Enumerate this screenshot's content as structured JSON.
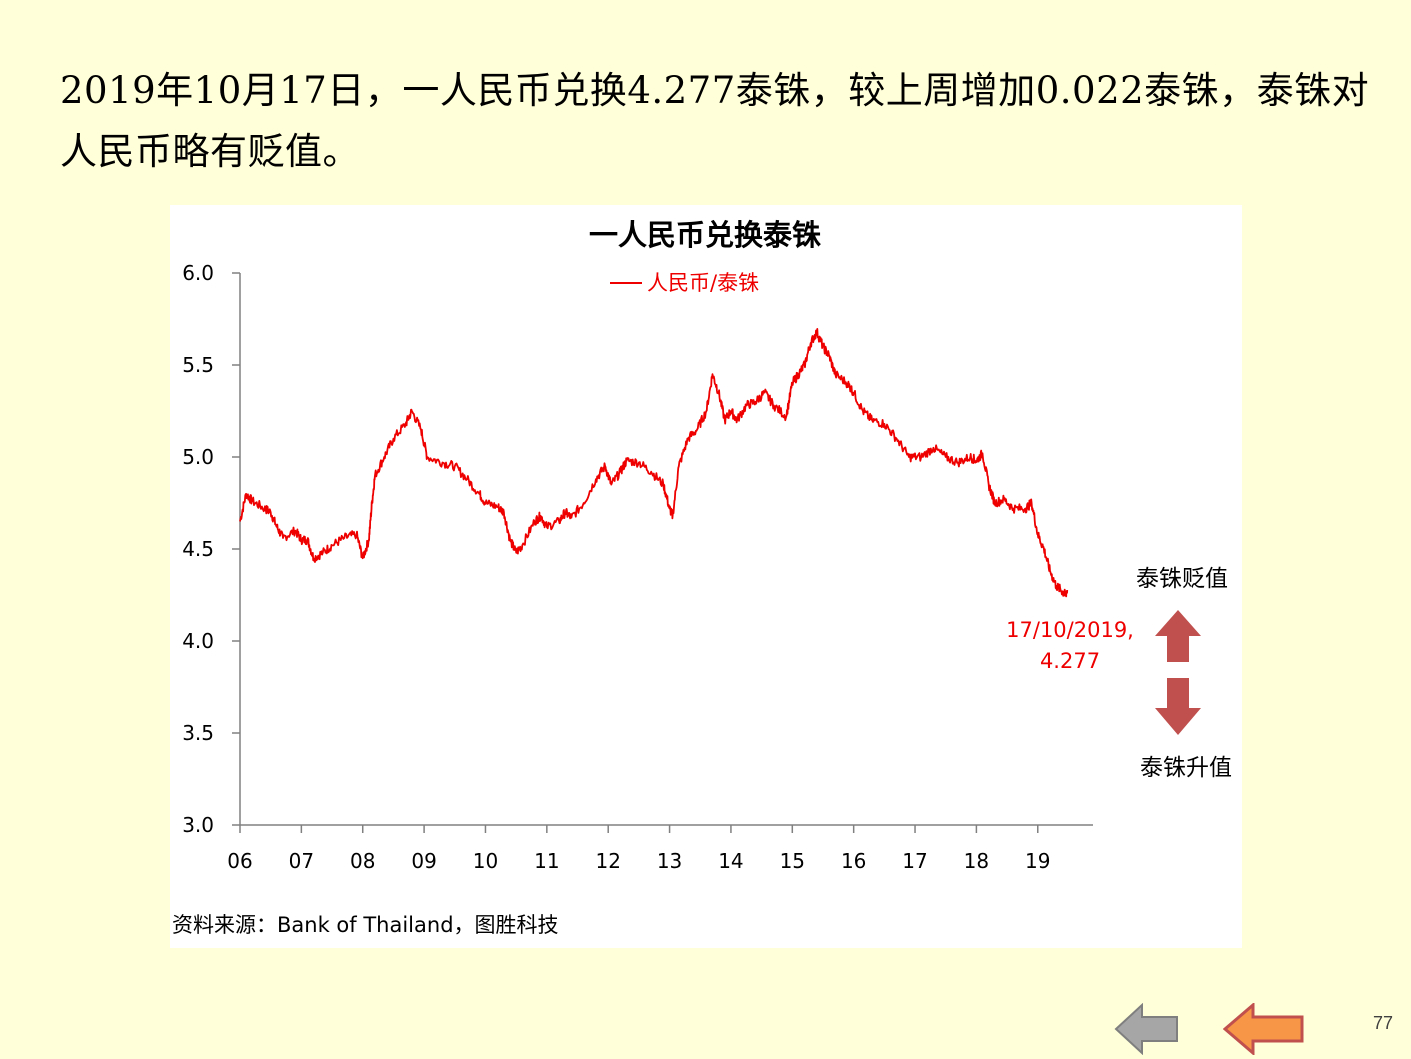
{
  "headline": "2019年10月17日，一人民币兑换4.277泰铢，较上周增加0.022泰铢，泰铢对人民币略有贬值。",
  "source_note": "资料来源：Bank of Thailand，图胜科技",
  "page_number": "77",
  "colors": {
    "line": "#EE0000",
    "arrow": "#C0504D",
    "background": "#FFFFD9",
    "nav_back": "#A6A6A6",
    "nav_prev": "#F79646"
  },
  "icons": {
    "back": "left-arrow-gray-icon",
    "prev": "left-arrow-orange-icon"
  },
  "arrow_labels": {
    "up": "泰铢贬值",
    "down": "泰铢升值"
  },
  "annotation": {
    "line1": "17/10/2019,",
    "line2": "4.277"
  },
  "chart_data": {
    "type": "line",
    "title": "一人民币兑换泰铢",
    "legend": "top-center",
    "grid": false,
    "ylim": [
      3.0,
      6.0
    ],
    "yticks": [
      "3.0",
      "3.5",
      "4.0",
      "4.5",
      "5.0",
      "5.5",
      "6.0"
    ],
    "xlim": [
      2006.0,
      2019.9
    ],
    "xticks": [
      "06",
      "07",
      "08",
      "09",
      "10",
      "11",
      "12",
      "13",
      "14",
      "15",
      "16",
      "17",
      "18",
      "19"
    ],
    "series": [
      {
        "name": "人民币/泰铢",
        "points": [
          [
            2006.0,
            4.65
          ],
          [
            2006.1,
            4.8
          ],
          [
            2006.2,
            4.76
          ],
          [
            2006.4,
            4.72
          ],
          [
            2006.5,
            4.7
          ],
          [
            2006.6,
            4.62
          ],
          [
            2006.7,
            4.56
          ],
          [
            2006.9,
            4.6
          ],
          [
            2007.0,
            4.55
          ],
          [
            2007.1,
            4.55
          ],
          [
            2007.2,
            4.45
          ],
          [
            2007.35,
            4.48
          ],
          [
            2007.5,
            4.52
          ],
          [
            2007.7,
            4.56
          ],
          [
            2007.9,
            4.58
          ],
          [
            2008.0,
            4.45
          ],
          [
            2008.1,
            4.55
          ],
          [
            2008.15,
            4.75
          ],
          [
            2008.2,
            4.9
          ],
          [
            2008.35,
            5.0
          ],
          [
            2008.5,
            5.1
          ],
          [
            2008.7,
            5.18
          ],
          [
            2008.8,
            5.25
          ],
          [
            2008.95,
            5.15
          ],
          [
            2009.05,
            5.0
          ],
          [
            2009.3,
            4.97
          ],
          [
            2009.5,
            4.95
          ],
          [
            2009.7,
            4.88
          ],
          [
            2009.9,
            4.8
          ],
          [
            2010.0,
            4.75
          ],
          [
            2010.2,
            4.73
          ],
          [
            2010.3,
            4.7
          ],
          [
            2010.4,
            4.55
          ],
          [
            2010.5,
            4.48
          ],
          [
            2010.6,
            4.52
          ],
          [
            2010.8,
            4.65
          ],
          [
            2010.9,
            4.68
          ],
          [
            2011.0,
            4.62
          ],
          [
            2011.2,
            4.65
          ],
          [
            2011.3,
            4.7
          ],
          [
            2011.4,
            4.67
          ],
          [
            2011.6,
            4.75
          ],
          [
            2011.8,
            4.88
          ],
          [
            2011.95,
            4.95
          ],
          [
            2012.05,
            4.85
          ],
          [
            2012.2,
            4.92
          ],
          [
            2012.3,
            4.98
          ],
          [
            2012.5,
            4.97
          ],
          [
            2012.7,
            4.92
          ],
          [
            2012.9,
            4.85
          ],
          [
            2013.0,
            4.72
          ],
          [
            2013.05,
            4.68
          ],
          [
            2013.15,
            4.95
          ],
          [
            2013.3,
            5.1
          ],
          [
            2013.45,
            5.15
          ],
          [
            2013.6,
            5.25
          ],
          [
            2013.7,
            5.45
          ],
          [
            2013.8,
            5.35
          ],
          [
            2013.9,
            5.2
          ],
          [
            2014.0,
            5.25
          ],
          [
            2014.1,
            5.2
          ],
          [
            2014.25,
            5.28
          ],
          [
            2014.4,
            5.3
          ],
          [
            2014.55,
            5.35
          ],
          [
            2014.7,
            5.28
          ],
          [
            2014.9,
            5.22
          ],
          [
            2015.0,
            5.4
          ],
          [
            2015.1,
            5.45
          ],
          [
            2015.2,
            5.5
          ],
          [
            2015.3,
            5.62
          ],
          [
            2015.4,
            5.68
          ],
          [
            2015.5,
            5.6
          ],
          [
            2015.6,
            5.55
          ],
          [
            2015.7,
            5.45
          ],
          [
            2015.9,
            5.4
          ],
          [
            2016.0,
            5.35
          ],
          [
            2016.15,
            5.25
          ],
          [
            2016.3,
            5.2
          ],
          [
            2016.5,
            5.18
          ],
          [
            2016.7,
            5.1
          ],
          [
            2016.9,
            5.0
          ],
          [
            2017.1,
            5.0
          ],
          [
            2017.3,
            5.05
          ],
          [
            2017.5,
            5.0
          ],
          [
            2017.7,
            4.97
          ],
          [
            2017.9,
            5.0
          ],
          [
            2018.0,
            4.98
          ],
          [
            2018.1,
            5.02
          ],
          [
            2018.2,
            4.85
          ],
          [
            2018.3,
            4.75
          ],
          [
            2018.45,
            4.77
          ],
          [
            2018.6,
            4.72
          ],
          [
            2018.8,
            4.72
          ],
          [
            2018.9,
            4.75
          ],
          [
            2019.0,
            4.58
          ],
          [
            2019.1,
            4.5
          ],
          [
            2019.2,
            4.38
          ],
          [
            2019.3,
            4.3
          ],
          [
            2019.4,
            4.27
          ],
          [
            2019.45,
            4.25
          ],
          [
            2019.48,
            4.277
          ]
        ]
      }
    ]
  }
}
